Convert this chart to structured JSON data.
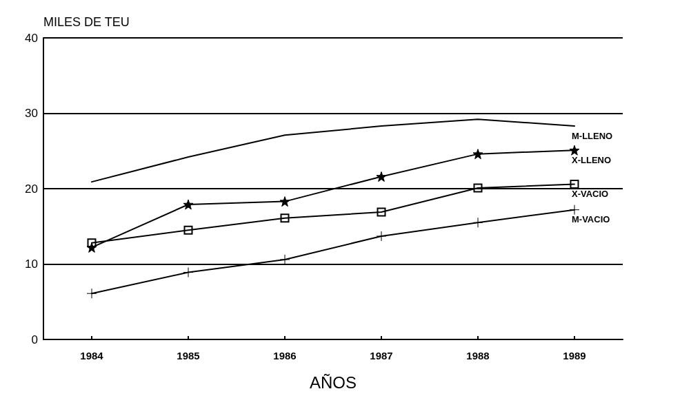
{
  "chart_data": {
    "type": "line",
    "xlabel": "AÑOS",
    "ylabel": "MILES DE TEU",
    "categories": [
      "1984",
      "1985",
      "1986",
      "1987",
      "1988",
      "1989"
    ],
    "ylim": [
      0,
      40
    ],
    "yticks": [
      0,
      10,
      20,
      30,
      40
    ],
    "grid": "y",
    "legend": false,
    "line_style": "solid",
    "series": [
      {
        "name": "M-LLENO",
        "color": "#000000",
        "marker": "none",
        "values": [
          20.9,
          24.2,
          27.1,
          28.3,
          29.2,
          28.3
        ]
      },
      {
        "name": "X-LLENO",
        "color": "#000000",
        "marker": "star",
        "values": [
          12.2,
          17.9,
          18.3,
          21.6,
          24.6,
          25.1
        ]
      },
      {
        "name": "X-VACIO",
        "color": "#000000",
        "marker": "square",
        "values": [
          12.8,
          14.5,
          16.1,
          16.9,
          20.1,
          20.6
        ]
      },
      {
        "name": "M-VACIO",
        "color": "#000000",
        "marker": "cross",
        "values": [
          6.1,
          8.9,
          10.6,
          13.7,
          15.5,
          17.2
        ]
      }
    ]
  }
}
